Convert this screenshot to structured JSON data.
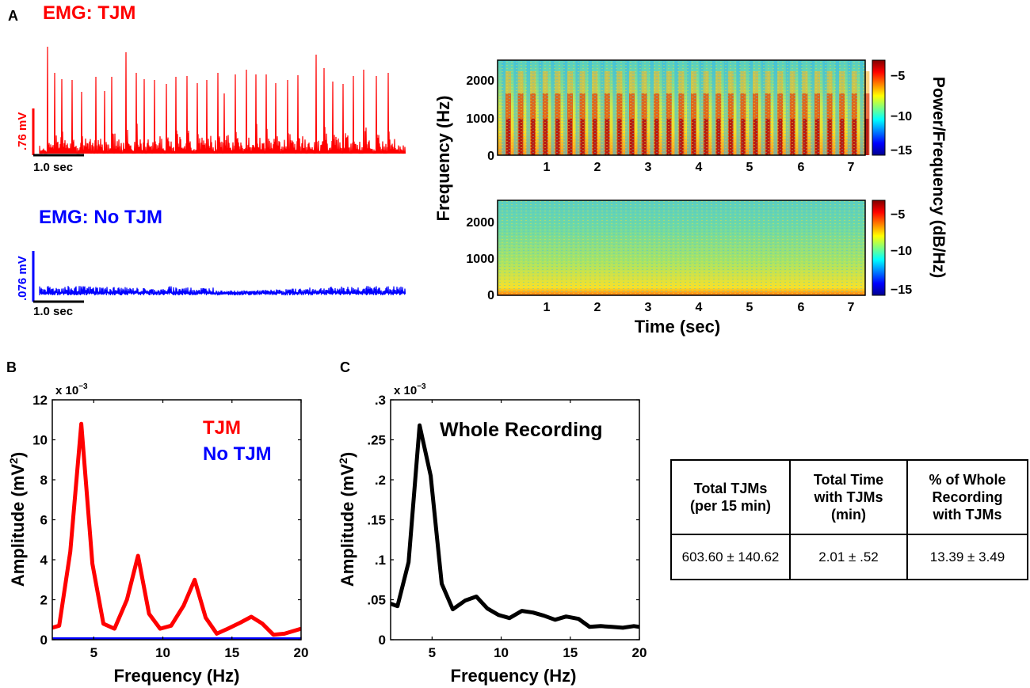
{
  "panel_labels": {
    "a": "A",
    "b": "B",
    "c": "C"
  },
  "colors": {
    "tjm": "#ff0000",
    "no_tjm": "#0000ff",
    "whole": "#000000"
  },
  "chart_data": [
    {
      "type": "line",
      "id": "emg_tjm",
      "title": "EMG: TJM",
      "scalebar_amplitude": ".76 mV",
      "scalebar_time": "1.0 sec",
      "description": "raw EMG trace with periodic bursts (~4 Hz)"
    },
    {
      "type": "line",
      "id": "emg_no_tjm",
      "title": "EMG: No TJM",
      "scalebar_amplitude": ".076 mV",
      "scalebar_time": "1.0 sec"
    },
    {
      "type": "heatmap",
      "id": "spectrograms",
      "ylabel": "Frequency (Hz)",
      "xlabel": "Time (sec)",
      "colorbar_label": "Power/Frequency (dB/Hz)",
      "x_ticks": [
        "1",
        "2",
        "3",
        "4",
        "5",
        "6",
        "7"
      ],
      "y_ticks": [
        "0",
        "1000",
        "2000"
      ],
      "colorbar_ticks": [
        "−5",
        "−10",
        "−15"
      ],
      "xlim": [
        0.1,
        7.3
      ],
      "ylim": [
        0,
        2500
      ],
      "clim": [
        -16,
        -3
      ]
    },
    {
      "type": "line",
      "id": "fft_tjm",
      "xlabel": "Frequency (Hz)",
      "ylabel": "Amplitude (mV",
      "ylabel_sup": "2",
      "ylabel_end": ")",
      "multiplier": "x 10",
      "multiplier_exp": "−3",
      "xlim": [
        2,
        20
      ],
      "ylim": [
        0,
        12
      ],
      "x_ticks": [
        "5",
        "10",
        "15",
        "20"
      ],
      "y_ticks": [
        "0",
        "2",
        "4",
        "6",
        "8",
        "10",
        "12"
      ],
      "legend": [
        "TJM",
        "No TJM"
      ],
      "series": [
        {
          "name": "TJM",
          "x": [
            2,
            2.5,
            3.3,
            4.1,
            4.9,
            5.7,
            6.5,
            7.4,
            8.2,
            9.0,
            9.8,
            10.6,
            11.5,
            12.3,
            13.1,
            13.9,
            14.7,
            15.6,
            16.4,
            17.2,
            18.0,
            18.8,
            20
          ],
          "values": [
            0.6,
            0.7,
            4.4,
            10.8,
            3.8,
            0.8,
            0.55,
            2.0,
            4.2,
            1.3,
            0.55,
            0.7,
            1.7,
            3.0,
            1.1,
            0.3,
            0.55,
            0.85,
            1.15,
            0.8,
            0.25,
            0.3,
            0.55
          ]
        },
        {
          "name": "No TJM",
          "x": [
            2,
            20
          ],
          "values": [
            0.02,
            0.02
          ]
        }
      ]
    },
    {
      "type": "line",
      "id": "fft_whole",
      "title": "Whole Recording",
      "xlabel": "Frequency (Hz)",
      "ylabel": "Amplitude (mV",
      "ylabel_sup": "2",
      "ylabel_end": ")",
      "multiplier": "x 10",
      "multiplier_exp": "−3",
      "xlim": [
        2,
        20
      ],
      "ylim": [
        0,
        0.3
      ],
      "x_ticks": [
        "5",
        "10",
        "15",
        "20"
      ],
      "y_ticks": [
        "0",
        ".05",
        ".1",
        ".15",
        ".2",
        ".25",
        ".3"
      ],
      "series": [
        {
          "name": "Whole Recording",
          "x": [
            2,
            2.5,
            3.3,
            4.1,
            4.9,
            5.7,
            6.5,
            7.4,
            8.2,
            9.0,
            9.8,
            10.6,
            11.5,
            12.3,
            13.1,
            13.9,
            14.7,
            15.6,
            16.4,
            17.2,
            18.0,
            18.8,
            19.6,
            20
          ],
          "values": [
            0.045,
            0.042,
            0.097,
            0.268,
            0.205,
            0.07,
            0.038,
            0.049,
            0.054,
            0.039,
            0.031,
            0.027,
            0.036,
            0.034,
            0.03,
            0.025,
            0.029,
            0.026,
            0.016,
            0.017,
            0.016,
            0.015,
            0.017,
            0.016
          ]
        }
      ]
    }
  ],
  "table": {
    "headers": [
      [
        "Total TJMs",
        "(per 15 min)"
      ],
      [
        "Total Time",
        "with TJMs",
        "(min)"
      ],
      [
        "% of Whole",
        "Recording",
        "with TJMs"
      ]
    ],
    "values": [
      "603.60 ± 140.62",
      "2.01 ± .52",
      "13.39 ± 3.49"
    ]
  }
}
